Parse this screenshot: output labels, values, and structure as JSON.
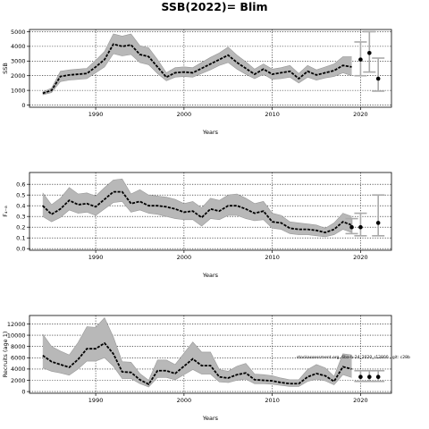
{
  "figure_title": "SSB(2022)= Blim",
  "watermark": "stockassessment.org, 6ba-b-24_2020_r12800 , git: c28b",
  "chart_data": [
    {
      "type": "line",
      "ylabel": "SSB",
      "xlabel": "Years",
      "xlim": [
        1982.5,
        2023.5
      ],
      "ylim": [
        -150,
        5150
      ],
      "xticks": [
        1990,
        2000,
        2010,
        2020
      ],
      "yticks": [
        0,
        1000,
        2000,
        3000,
        4000,
        5000
      ],
      "grid": true,
      "series": [
        {
          "x": [
            1984,
            1985,
            1986,
            1987,
            1988,
            1989,
            1990,
            1991,
            1992,
            1993,
            1994,
            1995,
            1996,
            1997,
            1998,
            1999,
            2000,
            2001,
            2002,
            2003,
            2004,
            2005,
            2006,
            2007,
            2008,
            2009,
            2010,
            2011,
            2012,
            2013,
            2014,
            2015,
            2016,
            2017,
            2018,
            2019
          ],
          "y": [
            800,
            1000,
            1950,
            2050,
            2100,
            2150,
            2600,
            3100,
            4150,
            4000,
            4100,
            3450,
            3300,
            2600,
            1900,
            2200,
            2250,
            2200,
            2500,
            2800,
            3100,
            3400,
            2900,
            2500,
            2100,
            2450,
            2100,
            2200,
            2300,
            1800,
            2300,
            2050,
            2200,
            2350,
            2700,
            2600
          ],
          "lower": [
            700,
            850,
            1600,
            1700,
            1750,
            1800,
            2200,
            2600,
            3500,
            3350,
            3450,
            2900,
            2750,
            2150,
            1650,
            1900,
            1950,
            1900,
            2150,
            2400,
            2700,
            2900,
            2450,
            2100,
            1800,
            2100,
            1750,
            1800,
            1900,
            1500,
            1900,
            1700,
            1850,
            1950,
            2200,
            2000
          ],
          "upper": [
            900,
            1150,
            2300,
            2400,
            2450,
            2500,
            3050,
            3650,
            4850,
            4700,
            4850,
            4050,
            3900,
            3100,
            2200,
            2550,
            2600,
            2550,
            2900,
            3250,
            3550,
            3950,
            3400,
            2950,
            2450,
            2800,
            2450,
            2550,
            2700,
            2150,
            2700,
            2400,
            2600,
            2800,
            3300,
            3300
          ]
        }
      ],
      "forecast": [
        {
          "x": 2020,
          "y": 3100,
          "lower": 2000,
          "upper": 4300
        },
        {
          "x": 2021,
          "y": 3550,
          "lower": 2250,
          "upper": 5000
        },
        {
          "x": 2022,
          "y": 1800,
          "lower": 950,
          "upper": 3200
        }
      ]
    },
    {
      "type": "line",
      "ylabel": "F₄₋₈",
      "xlabel": "Years",
      "xlim": [
        1982.5,
        2023.5
      ],
      "ylim": [
        -0.015,
        0.71
      ],
      "xticks": [
        1990,
        2000,
        2010,
        2020
      ],
      "yticks": [
        "0.0",
        "0.1",
        "0.2",
        "0.3",
        "0.4",
        "0.5",
        "0.6"
      ],
      "grid": true,
      "series": [
        {
          "x": [
            1984,
            1985,
            1986,
            1987,
            1988,
            1989,
            1990,
            1991,
            1992,
            1993,
            1994,
            1995,
            1996,
            1997,
            1998,
            1999,
            2000,
            2001,
            2002,
            2003,
            2004,
            2005,
            2006,
            2007,
            2008,
            2009,
            2010,
            2011,
            2012,
            2013,
            2014,
            2015,
            2016,
            2017,
            2018,
            2019
          ],
          "y": [
            0.4,
            0.32,
            0.37,
            0.45,
            0.41,
            0.42,
            0.39,
            0.46,
            0.53,
            0.53,
            0.42,
            0.44,
            0.4,
            0.4,
            0.39,
            0.37,
            0.34,
            0.35,
            0.29,
            0.37,
            0.35,
            0.4,
            0.4,
            0.37,
            0.33,
            0.35,
            0.25,
            0.24,
            0.19,
            0.18,
            0.18,
            0.17,
            0.15,
            0.18,
            0.25,
            0.22
          ],
          "lower": [
            0.3,
            0.25,
            0.29,
            0.36,
            0.33,
            0.34,
            0.31,
            0.37,
            0.43,
            0.44,
            0.34,
            0.36,
            0.33,
            0.32,
            0.3,
            0.28,
            0.27,
            0.27,
            0.21,
            0.28,
            0.27,
            0.31,
            0.31,
            0.28,
            0.26,
            0.27,
            0.19,
            0.18,
            0.14,
            0.13,
            0.13,
            0.12,
            0.11,
            0.13,
            0.18,
            0.15
          ],
          "upper": [
            0.52,
            0.41,
            0.47,
            0.57,
            0.51,
            0.52,
            0.49,
            0.57,
            0.64,
            0.65,
            0.51,
            0.55,
            0.5,
            0.49,
            0.48,
            0.46,
            0.42,
            0.44,
            0.38,
            0.47,
            0.45,
            0.5,
            0.51,
            0.47,
            0.42,
            0.44,
            0.33,
            0.31,
            0.25,
            0.24,
            0.23,
            0.22,
            0.19,
            0.24,
            0.33,
            0.3
          ]
        }
      ],
      "forecast": [
        {
          "x": 2019,
          "y": 0.2,
          "lower": 0.14,
          "upper": 0.28
        },
        {
          "x": 2020,
          "y": 0.2,
          "lower": 0.12,
          "upper": 0.33
        },
        {
          "x": 2022,
          "y": 0.24,
          "lower": 0.12,
          "upper": 0.5
        }
      ]
    },
    {
      "type": "line",
      "ylabel": "Recruits (age 1)",
      "xlabel": "Years",
      "xlim": [
        1982.5,
        2023.5
      ],
      "ylim": [
        -300,
        13500
      ],
      "xticks": [
        1990,
        2000,
        2010,
        2020
      ],
      "yticks": [
        0,
        2000,
        4000,
        6000,
        8000,
        10000,
        12000
      ],
      "grid": true,
      "series": [
        {
          "x": [
            1984,
            1985,
            1986,
            1987,
            1988,
            1989,
            1990,
            1991,
            1992,
            1993,
            1994,
            1995,
            1996,
            1997,
            1998,
            1999,
            2000,
            2001,
            2002,
            2003,
            2004,
            2005,
            2006,
            2007,
            2008,
            2009,
            2010,
            2011,
            2012,
            2013,
            2014,
            2015,
            2016,
            2017,
            2018,
            2019
          ],
          "y": [
            6400,
            5300,
            4800,
            4300,
            5700,
            7600,
            7600,
            8600,
            6700,
            3500,
            3400,
            2100,
            1300,
            3700,
            3700,
            3200,
            4500,
            5800,
            4600,
            4600,
            2600,
            2400,
            3000,
            3300,
            2100,
            2000,
            1900,
            1600,
            1400,
            1400,
            2600,
            3200,
            2800,
            1800,
            4400,
            4000
          ],
          "lower": [
            4200,
            3600,
            3300,
            2900,
            4000,
            5400,
            5400,
            6000,
            4500,
            2300,
            2300,
            1400,
            800,
            2500,
            2500,
            2100,
            3000,
            3900,
            3100,
            3100,
            1700,
            1600,
            2000,
            2200,
            1400,
            1400,
            1300,
            1100,
            900,
            900,
            1800,
            2200,
            1900,
            1200,
            3000,
            2500
          ],
          "upper": [
            10200,
            8000,
            7200,
            6500,
            8700,
            11500,
            11400,
            13100,
            9700,
            5300,
            5200,
            3200,
            2000,
            5600,
            5600,
            4800,
            6800,
            8800,
            7000,
            7000,
            3900,
            3600,
            4500,
            5000,
            3100,
            3000,
            2800,
            2400,
            2100,
            2100,
            3900,
            4800,
            4200,
            2700,
            6700,
            6500
          ]
        }
      ],
      "forecast": [
        {
          "x": 2020,
          "y": 2600,
          "lower": 1800,
          "upper": 3700
        },
        {
          "x": 2021,
          "y": 2600,
          "lower": 1800,
          "upper": 3700
        },
        {
          "x": 2022,
          "y": 2600,
          "lower": 1800,
          "upper": 3700
        }
      ]
    }
  ]
}
